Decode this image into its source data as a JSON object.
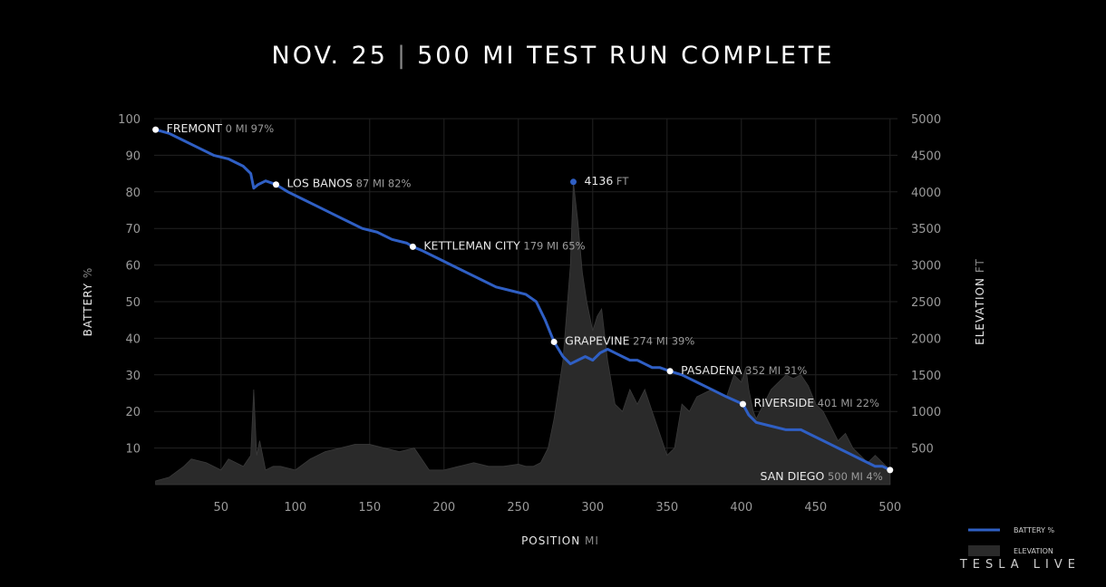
{
  "header": {
    "date": "NOV. 25",
    "separator": "|",
    "headline": "500 MI TEST RUN COMPLETE"
  },
  "brand": "TESLA LIVE",
  "colors": {
    "background": "#000000",
    "battery_line": "#2f5fc4",
    "elevation_fill": "#2a2a2a",
    "grid": "#222222",
    "label": "#e8e8e8",
    "label_muted": "#9a9a9a"
  },
  "chart_data": {
    "type": "line",
    "title": "NOV. 25 | 500 MI TEST RUN COMPLETE",
    "xlabel": "POSITION",
    "xunit": "MI",
    "ylabel": "BATTERY",
    "yunit": "%",
    "y2label": "ELEVATION",
    "y2unit": "FT",
    "xlim": [
      5,
      505
    ],
    "ylim": [
      0,
      100
    ],
    "y2lim": [
      0,
      5000
    ],
    "xticks": [
      50,
      100,
      150,
      200,
      250,
      300,
      350,
      400,
      450,
      500
    ],
    "yticks": [
      10,
      20,
      30,
      40,
      50,
      60,
      70,
      80,
      90,
      100
    ],
    "y2ticks": [
      500,
      1000,
      1500,
      2000,
      2500,
      3000,
      3500,
      4000,
      4500,
      5000
    ],
    "grid": true,
    "legend_position": "bottom-right",
    "legend": [
      {
        "label": "BATTERY %",
        "kind": "line"
      },
      {
        "label": "ELEVATION",
        "kind": "area"
      }
    ],
    "series": [
      {
        "name": "BATTERY %",
        "kind": "line",
        "axis": "left",
        "x": [
          6,
          15,
          25,
          35,
          45,
          55,
          65,
          70,
          72,
          75,
          80,
          87,
          95,
          105,
          115,
          125,
          135,
          145,
          155,
          165,
          175,
          179,
          185,
          195,
          205,
          215,
          225,
          235,
          245,
          255,
          262,
          268,
          274,
          280,
          285,
          290,
          295,
          300,
          305,
          310,
          315,
          320,
          325,
          330,
          335,
          340,
          345,
          352,
          360,
          370,
          380,
          390,
          401,
          405,
          410,
          420,
          430,
          440,
          450,
          455,
          460,
          465,
          470,
          475,
          480,
          485,
          490,
          495,
          500
        ],
        "values": [
          97,
          96,
          94,
          92,
          90,
          89,
          87,
          85,
          81,
          82,
          83,
          82,
          80,
          78,
          76,
          74,
          72,
          70,
          69,
          67,
          66,
          65,
          64,
          62,
          60,
          58,
          56,
          54,
          53,
          52,
          50,
          45,
          39,
          35,
          33,
          34,
          35,
          34,
          36,
          37,
          36,
          35,
          34,
          34,
          33,
          32,
          32,
          31,
          30,
          28,
          26,
          24,
          22,
          19,
          17,
          16,
          15,
          15,
          13,
          12,
          11,
          10,
          9,
          8,
          7,
          6,
          5,
          5,
          4
        ]
      },
      {
        "name": "ELEVATION",
        "kind": "area",
        "axis": "right",
        "x": [
          6,
          15,
          25,
          30,
          40,
          50,
          55,
          60,
          65,
          70,
          72,
          74,
          76,
          80,
          85,
          90,
          100,
          110,
          120,
          130,
          140,
          150,
          160,
          170,
          180,
          190,
          200,
          210,
          220,
          230,
          240,
          250,
          255,
          260,
          265,
          270,
          274,
          280,
          285,
          287,
          290,
          293,
          296,
          300,
          303,
          306,
          310,
          315,
          320,
          325,
          330,
          335,
          340,
          345,
          350,
          355,
          360,
          365,
          370,
          375,
          380,
          385,
          390,
          395,
          400,
          403,
          405,
          408,
          410,
          415,
          420,
          425,
          430,
          435,
          440,
          445,
          450,
          455,
          460,
          465,
          470,
          475,
          480,
          485,
          490,
          495,
          500
        ],
        "values": [
          50,
          100,
          250,
          350,
          300,
          200,
          350,
          300,
          250,
          400,
          1300,
          400,
          600,
          200,
          250,
          250,
          200,
          350,
          450,
          500,
          550,
          550,
          500,
          450,
          500,
          200,
          200,
          250,
          300,
          250,
          250,
          280,
          250,
          250,
          300,
          500,
          900,
          1700,
          3000,
          4136,
          3600,
          2900,
          2500,
          2100,
          2300,
          2400,
          1700,
          1100,
          1000,
          1300,
          1100,
          1300,
          1000,
          700,
          400,
          500,
          1100,
          1000,
          1200,
          1250,
          1300,
          1250,
          1200,
          1500,
          1400,
          1600,
          1300,
          1000,
          900,
          1100,
          1300,
          1400,
          1500,
          1450,
          1500,
          1350,
          1100,
          1000,
          800,
          600,
          700,
          500,
          400,
          300,
          400,
          300,
          200
        ]
      }
    ],
    "annotations": [
      {
        "name": "FREMONT",
        "mi": "0 MI",
        "pct": "97%",
        "x": 6,
        "y": 97,
        "axis": "left",
        "anchor": "right"
      },
      {
        "name": "LOS BANOS",
        "mi": "87 MI",
        "pct": "82%",
        "x": 87,
        "y": 82,
        "axis": "left",
        "anchor": "right"
      },
      {
        "name": "KETTLEMAN CITY",
        "mi": "179 MI",
        "pct": "65%",
        "x": 179,
        "y": 65,
        "axis": "left",
        "anchor": "right"
      },
      {
        "name": "GRAPEVINE",
        "mi": "274 MI",
        "pct": "39%",
        "x": 274,
        "y": 39,
        "axis": "left",
        "anchor": "right"
      },
      {
        "name": "PASADENA",
        "mi": "352 MI",
        "pct": "31%",
        "x": 352,
        "y": 31,
        "axis": "left",
        "anchor": "right"
      },
      {
        "name": "RIVERSIDE",
        "mi": "401 MI",
        "pct": "22%",
        "x": 401,
        "y": 22,
        "axis": "left",
        "anchor": "right"
      },
      {
        "name": "SAN DIEGO",
        "mi": "500 MI",
        "pct": "4%",
        "x": 500,
        "y": 4,
        "axis": "left",
        "anchor": "left"
      },
      {
        "name": "4136",
        "mi": "FT",
        "pct": "",
        "x": 287,
        "y": 4136,
        "axis": "right",
        "anchor": "right",
        "blue": true
      }
    ]
  }
}
